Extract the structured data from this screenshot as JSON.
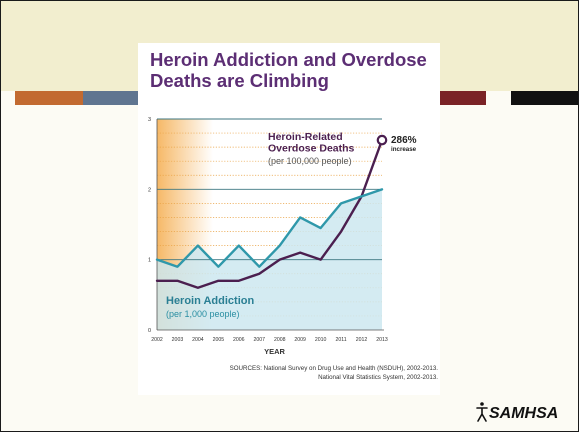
{
  "slide": {
    "colors": {
      "background": "#fcfbf4",
      "header_band": "#f2eecf",
      "frame": "#1a1a1a"
    },
    "accent_bars": [
      {
        "color": "#c26a30"
      },
      {
        "color": "#5f7590"
      },
      {
        "color": "#7a2326"
      },
      {
        "color": "#111111"
      }
    ],
    "logo": {
      "text": "SAMHSA",
      "icon": "samhsa-logo-icon"
    }
  },
  "card": {
    "title": "Heroin Addiction and Overdose Deaths are Climbing",
    "sources_line1": "SOURCES: National Survey on Drug Use and Health (NSDUH), 2002-2013.",
    "sources_line2": "National Vital Statistics System, 2002-2013."
  },
  "chart_data": {
    "type": "line",
    "title": "Heroin Addiction and Overdose Deaths are Climbing",
    "xlabel": "YEAR",
    "ylabel": "",
    "x": [
      2002,
      2003,
      2004,
      2005,
      2006,
      2007,
      2008,
      2009,
      2010,
      2011,
      2012,
      2013
    ],
    "ylim": [
      0,
      3
    ],
    "yticks": [
      0,
      1,
      2,
      3
    ],
    "grid": true,
    "series": [
      {
        "name": "Heroin-Related Overdose Deaths",
        "subtitle": "(per 100,000 people)",
        "color": "#4b1f4f",
        "values": [
          0.7,
          0.7,
          0.6,
          0.7,
          0.7,
          0.8,
          1.0,
          1.1,
          1.0,
          1.4,
          1.9,
          2.7
        ]
      },
      {
        "name": "Heroin Addiction",
        "subtitle": "(per 1,000 people)",
        "color": "#2f98aa",
        "fill": "#cde8f0",
        "values": [
          1.0,
          0.9,
          1.2,
          0.9,
          1.2,
          0.9,
          1.2,
          1.6,
          1.45,
          1.8,
          1.9,
          2.0
        ]
      }
    ],
    "annotations": [
      {
        "text": "286%",
        "subtext": "increase",
        "x": 2013,
        "y": 2.7
      }
    ],
    "colors": {
      "gradient_left": "#f6b866",
      "dotted_grid": "#eaa447",
      "solid_grid": "#3c7680",
      "axis": "#555555"
    }
  }
}
